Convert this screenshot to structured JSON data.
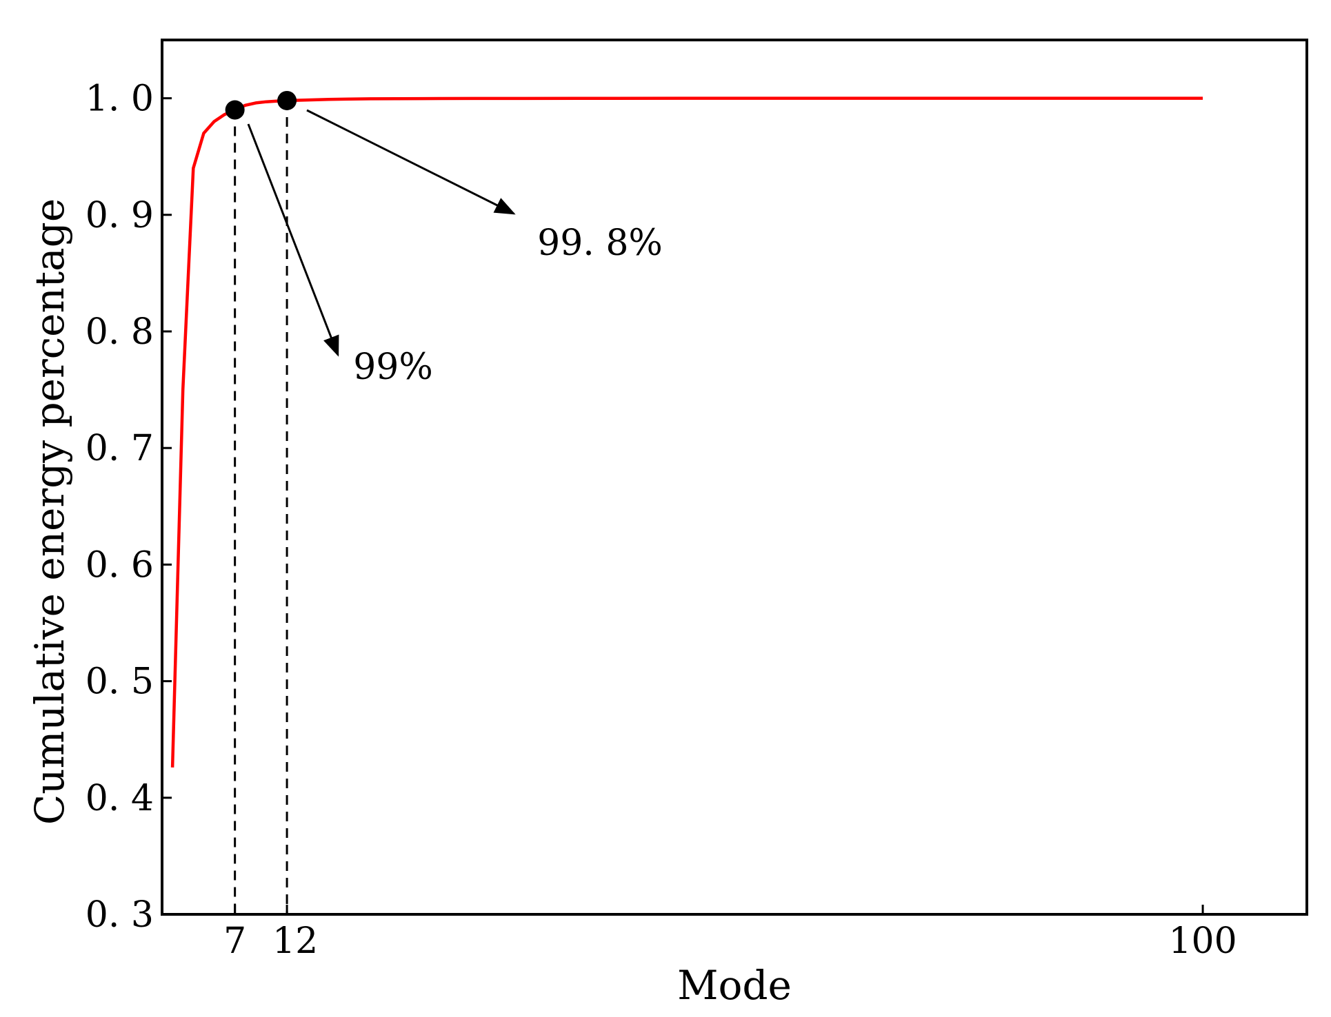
{
  "chart_data": {
    "type": "line",
    "title": "",
    "xlabel": "Mode",
    "ylabel": "Cumulative energy percentage",
    "xlim": [
      0,
      110
    ],
    "ylim": [
      0.3,
      1.05
    ],
    "x_ticks": [
      {
        "value": 7,
        "label": "7"
      },
      {
        "value": 12,
        "label": "12"
      },
      {
        "value": 100,
        "label": "100"
      }
    ],
    "y_ticks": [
      {
        "value": 0.3,
        "label": "0. 3"
      },
      {
        "value": 0.4,
        "label": "0. 4"
      },
      {
        "value": 0.5,
        "label": "0. 5"
      },
      {
        "value": 0.6,
        "label": "0. 6"
      },
      {
        "value": 0.7,
        "label": "0. 7"
      },
      {
        "value": 0.8,
        "label": "0. 8"
      },
      {
        "value": 0.9,
        "label": "0. 9"
      },
      {
        "value": 1.0,
        "label": "1. 0"
      }
    ],
    "grid": false,
    "series": [
      {
        "color": "#ff0000",
        "x": [
          1,
          2,
          3,
          4,
          5,
          6,
          7,
          8,
          9,
          10,
          11,
          12,
          14,
          16,
          18,
          20,
          25,
          30,
          40,
          50,
          60,
          70,
          80,
          90,
          100
        ],
        "y": [
          0.426,
          0.75,
          0.94,
          0.97,
          0.98,
          0.986,
          0.99,
          0.994,
          0.996,
          0.997,
          0.9975,
          0.998,
          0.9985,
          0.999,
          0.9993,
          0.9995,
          0.9997,
          0.9998,
          0.9999,
          1.0,
          1.0,
          1.0,
          1.0,
          1.0,
          1.0
        ]
      }
    ],
    "highlight_points": [
      {
        "x": 7,
        "y": 0.99,
        "label": "99%"
      },
      {
        "x": 12,
        "y": 0.998,
        "label": "99. 8%"
      }
    ]
  }
}
